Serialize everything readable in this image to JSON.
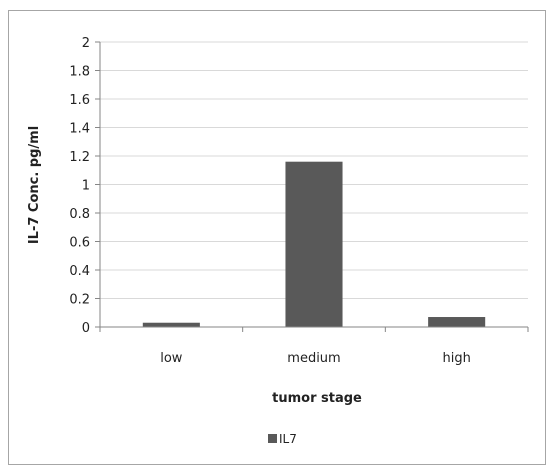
{
  "chart_data": {
    "type": "bar",
    "title": "",
    "xlabel": "tumor stage",
    "ylabel": "IL-7 Conc. pg/ml",
    "categories": [
      "low",
      "medium",
      "high"
    ],
    "series": [
      {
        "name": "IL7",
        "values": [
          0.03,
          1.16,
          0.07
        ],
        "color": "#595959"
      }
    ],
    "ylim": [
      0,
      2
    ],
    "yticks": [
      0,
      0.2,
      0.4,
      0.6,
      0.8,
      1,
      1.2,
      1.4,
      1.6,
      1.8,
      2
    ],
    "ytick_labels": [
      "0",
      "0.2",
      "0.4",
      "0.6",
      "0.8",
      "1",
      "1.2",
      "1.4",
      "1.6",
      "1.8",
      "2"
    ],
    "grid": true,
    "legend_position": "bottom"
  },
  "colors": {
    "gridline": "#d9d9d9",
    "axis": "#868686",
    "frame": "#a6a6a6"
  }
}
